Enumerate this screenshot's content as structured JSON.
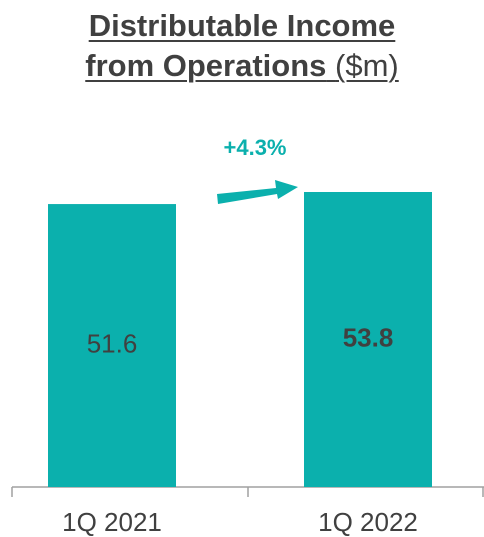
{
  "chart_data": {
    "type": "bar",
    "title": "Distributable Income from Operations",
    "title_unit": "($m)",
    "annotation": "+4.3%",
    "categories": [
      "1Q 2021",
      "1Q 2022"
    ],
    "values": [
      51.6,
      53.8
    ],
    "value_label_bold": [
      false,
      true
    ],
    "color": "#0bb0ad"
  }
}
